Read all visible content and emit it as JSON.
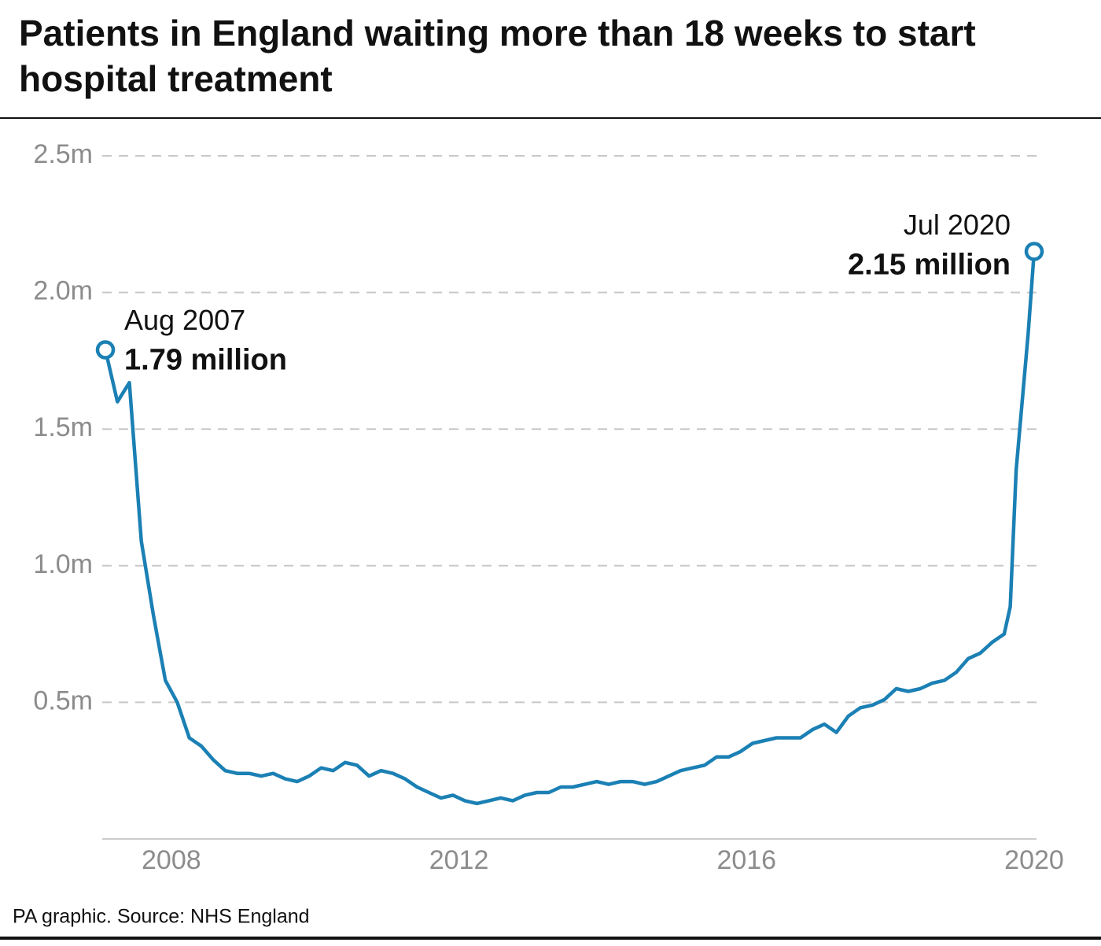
{
  "chart_data": {
    "type": "line",
    "title": "Patients in England waiting more than 18 weeks to start hospital treatment",
    "source": "PA graphic. Source: NHS England",
    "x": [
      2007.583,
      2007.75,
      2007.917,
      2008.083,
      2008.25,
      2008.417,
      2008.583,
      2008.75,
      2008.917,
      2009.083,
      2009.25,
      2009.417,
      2009.583,
      2009.75,
      2009.917,
      2010.083,
      2010.25,
      2010.417,
      2010.583,
      2010.75,
      2010.917,
      2011.083,
      2011.25,
      2011.417,
      2011.583,
      2011.75,
      2011.917,
      2012.083,
      2012.25,
      2012.417,
      2012.583,
      2012.75,
      2012.917,
      2013.083,
      2013.25,
      2013.417,
      2013.583,
      2013.75,
      2013.917,
      2014.083,
      2014.25,
      2014.417,
      2014.583,
      2014.75,
      2014.917,
      2015.083,
      2015.25,
      2015.417,
      2015.583,
      2015.75,
      2015.917,
      2016.083,
      2016.25,
      2016.417,
      2016.583,
      2016.75,
      2016.917,
      2017.083,
      2017.25,
      2017.417,
      2017.583,
      2017.75,
      2017.917,
      2018.083,
      2018.25,
      2018.417,
      2018.583,
      2018.75,
      2018.917,
      2019.083,
      2019.25,
      2019.417,
      2019.583,
      2019.75,
      2019.917,
      2020.083,
      2020.167,
      2020.25,
      2020.417,
      2020.5
    ],
    "series": [
      {
        "name": "Patients waiting more than 18 weeks",
        "color": "#1b80b4",
        "values": [
          1.79,
          1.6,
          1.67,
          1.09,
          0.82,
          0.58,
          0.5,
          0.37,
          0.34,
          0.29,
          0.25,
          0.24,
          0.24,
          0.23,
          0.24,
          0.22,
          0.21,
          0.23,
          0.26,
          0.25,
          0.28,
          0.27,
          0.23,
          0.25,
          0.24,
          0.22,
          0.19,
          0.17,
          0.15,
          0.16,
          0.14,
          0.13,
          0.14,
          0.15,
          0.14,
          0.16,
          0.17,
          0.17,
          0.19,
          0.19,
          0.2,
          0.21,
          0.2,
          0.21,
          0.21,
          0.2,
          0.21,
          0.23,
          0.25,
          0.26,
          0.27,
          0.3,
          0.3,
          0.32,
          0.35,
          0.36,
          0.37,
          0.37,
          0.37,
          0.4,
          0.42,
          0.39,
          0.45,
          0.48,
          0.49,
          0.51,
          0.55,
          0.54,
          0.55,
          0.57,
          0.58,
          0.61,
          0.66,
          0.68,
          0.72,
          0.75,
          0.85,
          1.35,
          1.85,
          2.15
        ],
        "value_labels": [
          "1.79 million",
          null,
          null,
          null,
          null,
          null,
          null,
          null,
          null,
          null,
          null,
          null,
          null,
          null,
          null,
          null,
          null,
          null,
          null,
          null,
          null,
          null,
          null,
          null,
          null,
          null,
          null,
          null,
          null,
          null,
          null,
          null,
          null,
          null,
          null,
          null,
          null,
          null,
          null,
          null,
          null,
          null,
          null,
          null,
          null,
          null,
          null,
          null,
          null,
          null,
          null,
          null,
          null,
          null,
          null,
          null,
          null,
          null,
          null,
          null,
          null,
          null,
          null,
          null,
          null,
          null,
          null,
          null,
          null,
          null,
          null,
          null,
          null,
          null,
          null,
          null,
          null,
          null,
          null,
          "2.15 million"
        ]
      }
    ],
    "annotations": [
      "Aug 2007",
      "Jul 2020"
    ],
    "xlim": [
      2007.583,
      2020.5
    ],
    "xticks": [
      {
        "value": 2008.5,
        "label": "2008"
      },
      {
        "value": 2012.5,
        "label": "2012"
      },
      {
        "value": 2016.5,
        "label": "2016"
      },
      {
        "value": 2020.5,
        "label": "2020"
      }
    ],
    "ylim": [
      0,
      2.5
    ],
    "yticks": [
      {
        "value": 0.5,
        "label": "0.5m"
      },
      {
        "value": 1.0,
        "label": "1.0m"
      },
      {
        "value": 1.5,
        "label": "1.5m"
      },
      {
        "value": 2.0,
        "label": "2.0m"
      },
      {
        "value": 2.5,
        "label": "2.5m"
      }
    ],
    "grid": true
  }
}
